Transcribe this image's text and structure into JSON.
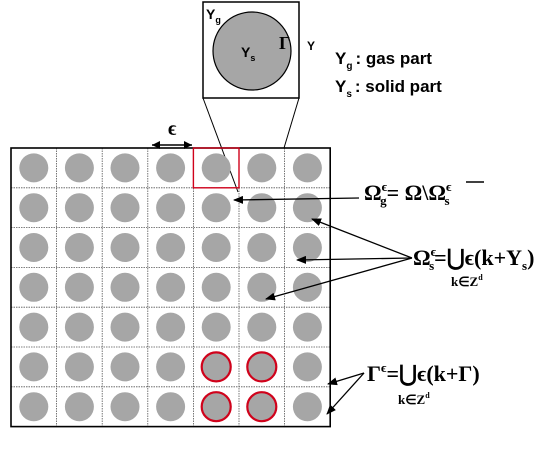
{
  "zoom_cell": {
    "gas_symbol": "Y",
    "gas_subscript": "g",
    "solid_symbol": "Y",
    "solid_subscript": "s",
    "boundary_symbol": "Γ",
    "cell_symbol": "Y"
  },
  "legend": {
    "gas_symbol": "Y",
    "gas_subscript": "g",
    "gas_text": ": gas part",
    "solid_symbol": "Y",
    "solid_subscript": "s",
    "solid_text": ": solid part"
  },
  "epsilon_label": "ϵ",
  "grid": {
    "rows": 7,
    "cols": 7,
    "highlighted_cells": [
      [
        6,
        5
      ],
      [
        6,
        6
      ],
      [
        7,
        5
      ],
      [
        7,
        6
      ]
    ],
    "zoom_source_cell": [
      1,
      5
    ]
  },
  "formulas": {
    "omega_g": {
      "lhs": "Ω",
      "lhs_sup": "ϵ",
      "lhs_sub": "g",
      "rhs_a": "= Ω\\",
      "rhs_b": "Ω",
      "rhs_b_sup": "ϵ",
      "rhs_b_sub": "s"
    },
    "omega_s": {
      "lhs": "Ω",
      "lhs_sup": "ϵ",
      "lhs_sub": "s",
      "rhs": "=⋃ϵ(k+Y",
      "rhs_sub": "s",
      "rhs_end": ")",
      "under": "k∈Z",
      "under_sup": "d"
    },
    "gamma": {
      "lhs": "Γ",
      "lhs_sup": "ϵ",
      "rhs": "=⋃ϵ(k+Γ)",
      "under": "k∈Z",
      "under_sup": "d"
    }
  },
  "colors": {
    "disk_fill": "#a6a6a6",
    "highlight": "#d0021b",
    "line": "#000000"
  }
}
